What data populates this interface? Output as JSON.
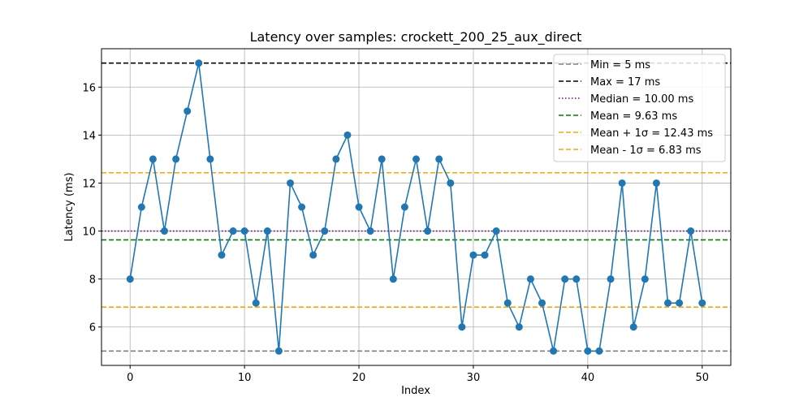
{
  "chart_data": {
    "type": "line",
    "title": "Latency over samples: crockett_200_25_aux_direct",
    "xlabel": "Index",
    "ylabel": "Latency (ms)",
    "xlim": [
      -2.5,
      52.5
    ],
    "ylim": [
      4.4,
      17.6
    ],
    "xticks": [
      0,
      10,
      20,
      30,
      40,
      50
    ],
    "yticks": [
      6,
      8,
      10,
      12,
      14,
      16
    ],
    "grid": true,
    "legend_position": "top-right",
    "series": [
      {
        "color": "#1f77b4",
        "marker": "circle",
        "x": [
          0,
          1,
          2,
          3,
          4,
          5,
          6,
          7,
          8,
          9,
          10,
          11,
          12,
          13,
          14,
          15,
          16,
          17,
          18,
          19,
          20,
          21,
          22,
          23,
          24,
          25,
          26,
          27,
          28,
          29,
          30,
          31,
          32,
          33,
          34,
          35,
          36,
          37,
          38,
          39,
          40,
          41,
          42,
          43,
          44,
          45,
          46,
          47,
          48,
          49,
          50
        ],
        "values": [
          8,
          11,
          13,
          10,
          13,
          15,
          17,
          13,
          9,
          10,
          10,
          7,
          10,
          5,
          12,
          11,
          9,
          10,
          13,
          14,
          11,
          10,
          13,
          8,
          11,
          13,
          10,
          13,
          12,
          6,
          9,
          9,
          10,
          7,
          6,
          8,
          7,
          5,
          8,
          8,
          5,
          5,
          8,
          12,
          6,
          8,
          12,
          7,
          7,
          10,
          7
        ]
      }
    ],
    "reference_lines": [
      {
        "label": "Min = 5 ms",
        "value": 5,
        "color": "#808080",
        "style": "dashed"
      },
      {
        "label": "Max = 17 ms",
        "value": 17,
        "color": "#000000",
        "style": "dashed"
      },
      {
        "label": "Median = 10.00 ms",
        "value": 10.0,
        "color": "#800080",
        "style": "dotted"
      },
      {
        "label": "Mean = 9.63 ms",
        "value": 9.63,
        "color": "#008000",
        "style": "dashed"
      },
      {
        "label": "Mean + 1σ = 12.43 ms",
        "value": 12.43,
        "color": "#ffa500",
        "style": "dashed"
      },
      {
        "label": "Mean - 1σ = 6.83 ms",
        "value": 6.83,
        "color": "#ffa500",
        "style": "dashed"
      }
    ]
  }
}
